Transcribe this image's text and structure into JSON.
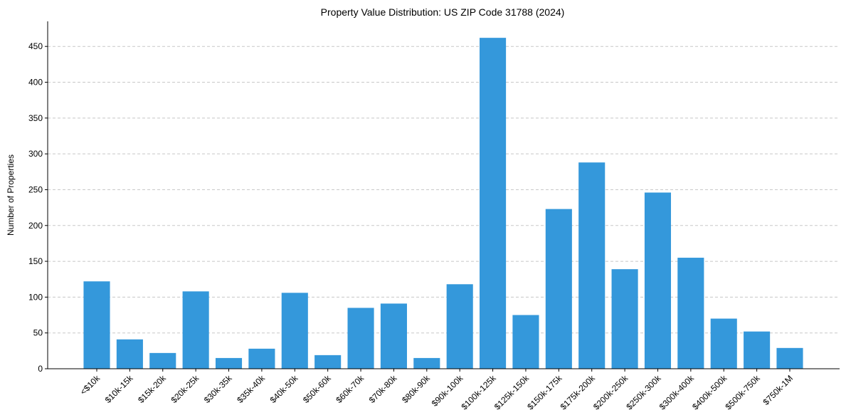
{
  "chart_data": {
    "type": "bar",
    "title": "Property Value Distribution: US ZIP Code 31788 (2024)",
    "xlabel": "",
    "ylabel": "Number of Properties",
    "ylim": [
      0,
      485
    ],
    "yticks": [
      0,
      50,
      100,
      150,
      200,
      250,
      300,
      350,
      400,
      450
    ],
    "grid": true,
    "bar_color": "#3498db",
    "categories": [
      "<$10k",
      "$10k-15k",
      "$15k-20k",
      "$20k-25k",
      "$30k-35k",
      "$35k-40k",
      "$40k-50k",
      "$50k-60k",
      "$60k-70k",
      "$70k-80k",
      "$80k-90k",
      "$90k-100k",
      "$100k-125k",
      "$125k-150k",
      "$150k-175k",
      "$175k-200k",
      "$200k-250k",
      "$250k-300k",
      "$300k-400k",
      "$400k-500k",
      "$500k-750k",
      "$750k-1M"
    ],
    "values": [
      122,
      41,
      22,
      108,
      15,
      28,
      106,
      19,
      85,
      91,
      15,
      118,
      462,
      75,
      223,
      288,
      139,
      246,
      155,
      70,
      52,
      29
    ]
  }
}
